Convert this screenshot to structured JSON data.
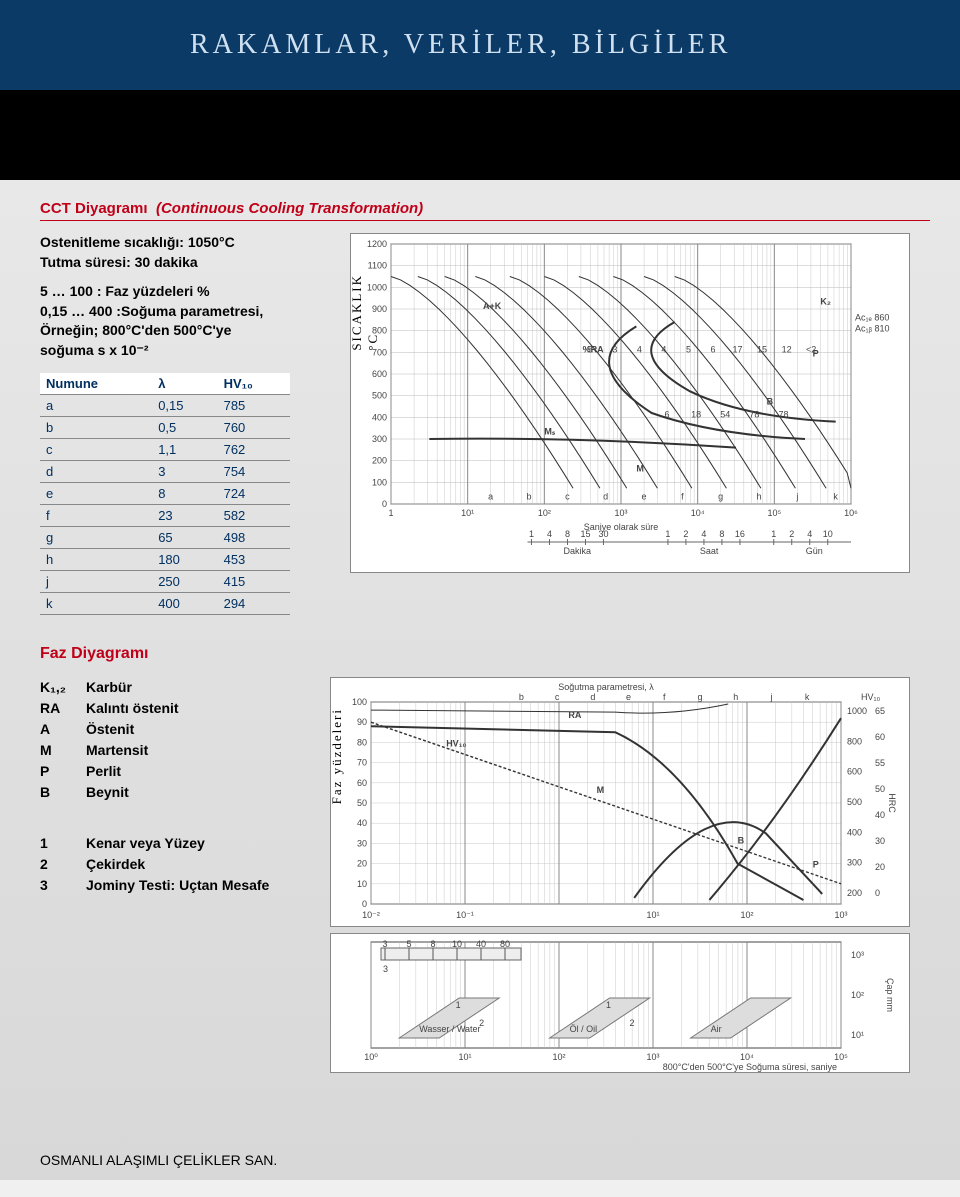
{
  "banner_title": "RAKAMLAR, VERİLER, BİLGİLER",
  "cct": {
    "title": "CCT Diyagramı",
    "subtitle": "(Continuous Cooling Transformation)",
    "line1": "Ostenitleme sıcaklığı: 1050°C",
    "line2": "Tutma süresi: 30 dakika",
    "line3": "5 … 100 : Faz yüzdeleri %",
    "line4": "0,15 … 400 :Soğuma parametresi,",
    "line5": "Örneğin; 800°C'den 500°C'ye",
    "line6": "soğuma  s x 10⁻²"
  },
  "sample_table": {
    "col1": "Numune",
    "col2": "λ",
    "col3": "HV₁₀",
    "rows": [
      [
        "a",
        "0,15",
        "785"
      ],
      [
        "b",
        "0,5",
        "760"
      ],
      [
        "c",
        "1,1",
        "762"
      ],
      [
        "d",
        "3",
        "754"
      ],
      [
        "e",
        "8",
        "724"
      ],
      [
        "f",
        "23",
        "582"
      ],
      [
        "g",
        "65",
        "498"
      ],
      [
        "h",
        "180",
        "453"
      ],
      [
        "j",
        "250",
        "415"
      ],
      [
        "k",
        "400",
        "294"
      ]
    ]
  },
  "faz_title": "Faz Diyagramı",
  "phase_legend": [
    {
      "sym": "K₁,₂",
      "label": "Karbür"
    },
    {
      "sym": "RA",
      "label": "Kalıntı östenit"
    },
    {
      "sym": "A",
      "label": "Östenit"
    },
    {
      "sym": "M",
      "label": "Martensit"
    },
    {
      "sym": "P",
      "label": "Perlit"
    },
    {
      "sym": "B",
      "label": "Beynit"
    }
  ],
  "foot_legend": [
    {
      "sym": "1",
      "label": "Kenar veya Yüzey"
    },
    {
      "sym": "2",
      "label": "Çekirdek"
    },
    {
      "sym": "3",
      "label": "Jominy Testi: Uçtan Mesafe"
    }
  ],
  "footer_text": "OSMANLI ALAŞIMLI ÇELİKLER SAN.",
  "cct_chart": {
    "y_label_vertical": "SICAKLIK",
    "y_unit": "°C",
    "y_ticks": [
      0,
      100,
      200,
      300,
      400,
      500,
      600,
      700,
      800,
      900,
      1000,
      1100,
      1200
    ],
    "ylim": [
      0,
      1200
    ],
    "x_label": "Saniye olarak süre",
    "x_ticks_logexp": [
      0,
      1,
      2,
      3,
      4,
      5,
      6
    ],
    "x_tick_labels": [
      "1",
      "10¹",
      "10²",
      "10³",
      "10⁴",
      "10⁵",
      "10⁶"
    ],
    "minute_axis": {
      "label": "Dakika",
      "ticks": [
        "1",
        "4",
        "8",
        "15",
        "30"
      ]
    },
    "hour_axis": {
      "label": "Saat",
      "ticks": [
        "1",
        "2",
        "4",
        "8",
        "16"
      ]
    },
    "day_axis": {
      "label": "Gün",
      "ticks": [
        "1",
        "2",
        "4",
        "10"
      ]
    },
    "regions": [
      "A+K",
      "%RA",
      "Mₛ",
      "M",
      "P",
      "B",
      "K₂"
    ],
    "right_marks": {
      "Ac1e": "860",
      "Ac1b": "810"
    },
    "sample_letters": [
      "a",
      "b",
      "c",
      "d",
      "e",
      "f",
      "g",
      "h",
      "j",
      "k"
    ],
    "ra_values": [
      "5",
      "3",
      "4",
      "4",
      "5",
      "6",
      "17",
      "15",
      "12",
      "<2"
    ],
    "b_values": [
      "6",
      "18",
      "54",
      "78",
      "78"
    ],
    "curve_colors": {
      "frame": "#333333",
      "grid": "#bbbbbb"
    }
  },
  "faz_chart": {
    "title_top": "Soğutma parametresi,  λ",
    "y_label": "Faz yüzdeleri",
    "y_ticks": [
      0,
      10,
      20,
      30,
      40,
      50,
      60,
      70,
      80,
      90,
      100
    ],
    "x_ticks_logexp": [
      -2,
      -1,
      0,
      1,
      2,
      3
    ],
    "x_tick_labels": [
      "10⁻²",
      "10⁻¹",
      "",
      "10¹",
      "10²",
      "10³"
    ],
    "top_letters": [
      "b",
      "c",
      "d",
      "e",
      "f",
      "g",
      "h",
      "j",
      "k"
    ],
    "hv_label": "HV₁₀",
    "right_hrc_ticks": [
      "1000",
      "800",
      "600",
      "500",
      "400",
      "300",
      "200"
    ],
    "right_hrc2": [
      "65",
      "60",
      "55",
      "50",
      "40",
      "30",
      "20",
      "0"
    ],
    "zones": [
      "RA",
      "M",
      "B",
      "P"
    ]
  },
  "bottom_chart": {
    "x_label_full": "800°C'den 500°C'ye Soğuma süresi, saniye",
    "right_vlabel": "Çap mm",
    "x_ticks_logexp": [
      0,
      1,
      2,
      3,
      4,
      5
    ],
    "jominy_ticks": [
      "3",
      "5",
      "8",
      "10",
      "40",
      "80"
    ],
    "media": [
      "Wasser / Water",
      "Öl / Oil",
      "Air"
    ],
    "zone_marks": [
      "1",
      "2",
      "3"
    ]
  },
  "colors": {
    "brand_red": "#c00018",
    "brand_navy": "#0b3a66",
    "line": "#333333",
    "grid": "#bbbbbb"
  }
}
